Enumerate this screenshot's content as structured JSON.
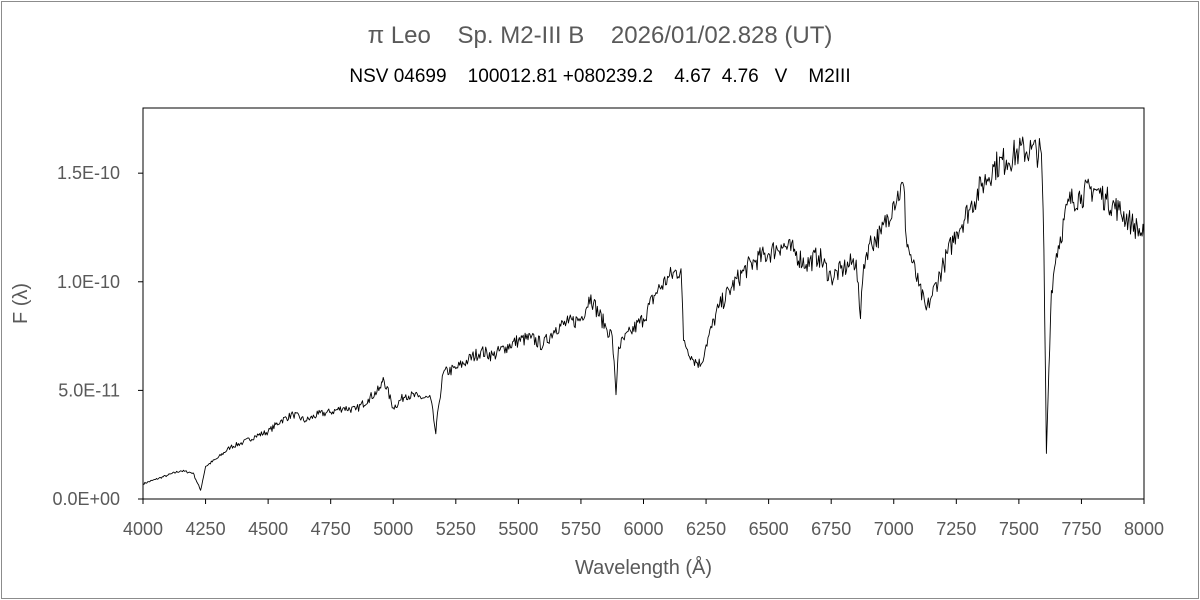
{
  "chart_data": {
    "type": "line",
    "title": "π Leo    Sp. M2-III B    2026/01/02.828 (UT)",
    "subtitle": "NSV 04699    100012.81 +080239.2    4.67  4.76   V    M2III",
    "xlabel": "Wavelength (Å)",
    "ylabel": "F (λ)",
    "xlim": [
      4000,
      8000
    ],
    "ylim": [
      0,
      1.8e-10
    ],
    "xticks": [
      4000,
      4250,
      4500,
      4750,
      5000,
      5250,
      5500,
      5750,
      6000,
      6250,
      6500,
      6750,
      7000,
      7250,
      7500,
      7750,
      8000
    ],
    "xtick_labels": [
      "4000",
      "4250",
      "4500",
      "4750",
      "5000",
      "5250",
      "5500",
      "5750",
      "6000",
      "6250",
      "6500",
      "6750",
      "7000",
      "7250",
      "7500",
      "7750",
      "8000"
    ],
    "yticks": [
      0,
      5e-11,
      1e-10,
      1.5e-10
    ],
    "ytick_labels": [
      "0.0E+00",
      "5.0E-11",
      "1.0E-10",
      "1.5E-10"
    ],
    "grid": false,
    "legend": "none",
    "line_color": "#000000",
    "series": [
      {
        "x": [
          4000,
          4050,
          4100,
          4150,
          4200,
          4230,
          4250,
          4300,
          4350,
          4400,
          4450,
          4500,
          4550,
          4600,
          4650,
          4700,
          4750,
          4800,
          4850,
          4900,
          4950,
          4960,
          5000,
          5050,
          5100,
          5150,
          5170,
          5180,
          5200,
          5250,
          5300,
          5350,
          5400,
          5450,
          5500,
          5550,
          5600,
          5650,
          5700,
          5750,
          5790,
          5800,
          5850,
          5875,
          5890,
          5900,
          5950,
          6000,
          6050,
          6100,
          6150,
          6160,
          6200,
          6230,
          6250,
          6300,
          6350,
          6400,
          6450,
          6500,
          6550,
          6600,
          6650,
          6700,
          6750,
          6800,
          6850,
          6867,
          6880,
          6900,
          6950,
          7000,
          7040,
          7050,
          7060,
          7100,
          7130,
          7150,
          7200,
          7250,
          7300,
          7350,
          7400,
          7450,
          7500,
          7550,
          7590,
          7600,
          7610,
          7620,
          7630,
          7650,
          7700,
          7750,
          7800,
          7850,
          7900,
          7950,
          8000
        ],
        "y": [
          7e-12,
          9e-12,
          1.1e-11,
          1.3e-11,
          1.2e-11,
          4e-12,
          1.5e-11,
          1.9e-11,
          2.4e-11,
          2.6e-11,
          2.9e-11,
          3.1e-11,
          3.6e-11,
          3.9e-11,
          3.6e-11,
          3.9e-11,
          4e-11,
          4.2e-11,
          4.1e-11,
          4.6e-11,
          5.1e-11,
          5.6e-11,
          4.2e-11,
          4.8e-11,
          4.7e-11,
          4.6e-11,
          3e-11,
          4.2e-11,
          5.8e-11,
          6e-11,
          6.4e-11,
          6.8e-11,
          6.6e-11,
          7e-11,
          7.3e-11,
          7.4e-11,
          7.1e-11,
          7.9e-11,
          8.1e-11,
          8.3e-11,
          9.4e-11,
          9e-11,
          7.9e-11,
          7.5e-11,
          4.8e-11,
          7e-11,
          7.7e-11,
          8.3e-11,
          9.5e-11,
          1.02e-10,
          1.06e-10,
          7.3e-11,
          6.4e-11,
          6.2e-11,
          7.1e-11,
          8.8e-11,
          9.7e-11,
          1.05e-10,
          1.1e-10,
          1.13e-10,
          1.17e-10,
          1.14e-10,
          1.08e-10,
          1.12e-10,
          1.02e-10,
          1.06e-10,
          1.1e-10,
          8.3e-11,
          1.08e-10,
          1.17e-10,
          1.22e-10,
          1.37e-10,
          1.44e-10,
          1.2e-10,
          1.15e-10,
          9.8e-11,
          8.7e-11,
          9.3e-11,
          1.08e-10,
          1.23e-10,
          1.33e-10,
          1.44e-10,
          1.53e-10,
          1.56e-10,
          1.6e-10,
          1.61e-10,
          1.59e-10,
          1.15e-10,
          2.1e-11,
          6e-11,
          9.6e-11,
          1.13e-10,
          1.37e-10,
          1.4e-10,
          1.43e-10,
          1.38e-10,
          1.33e-10,
          1.27e-10,
          1.21e-10
        ]
      }
    ]
  }
}
